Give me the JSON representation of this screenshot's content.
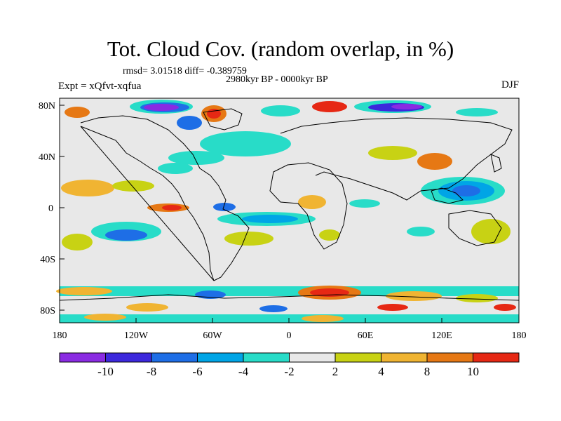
{
  "title": "Tot. Cloud Cov. (random overlap, in %)",
  "stats": "rmsd= 3.01518 diff= -0.389759",
  "period": "2980kyr BP - 0000kyr BP",
  "experiment": "Expt = xQfvt-xqfua",
  "season": "DJF",
  "lat_ticks": [
    "80N",
    "40N",
    "0",
    "40S",
    "80S"
  ],
  "lon_ticks": [
    "180",
    "120W",
    "60W",
    "0",
    "60E",
    "120E",
    "180"
  ],
  "colorbar": {
    "colors": [
      "#8a2be2",
      "#3c28dc",
      "#1e6ee6",
      "#00a5e6",
      "#28dcc8",
      "#e8e8e8",
      "#c8d214",
      "#f0b432",
      "#e67814",
      "#e62814"
    ],
    "labels": [
      "-10",
      "-8",
      "-6",
      "-4",
      "-2",
      "2",
      "4",
      "8",
      "10"
    ]
  }
}
